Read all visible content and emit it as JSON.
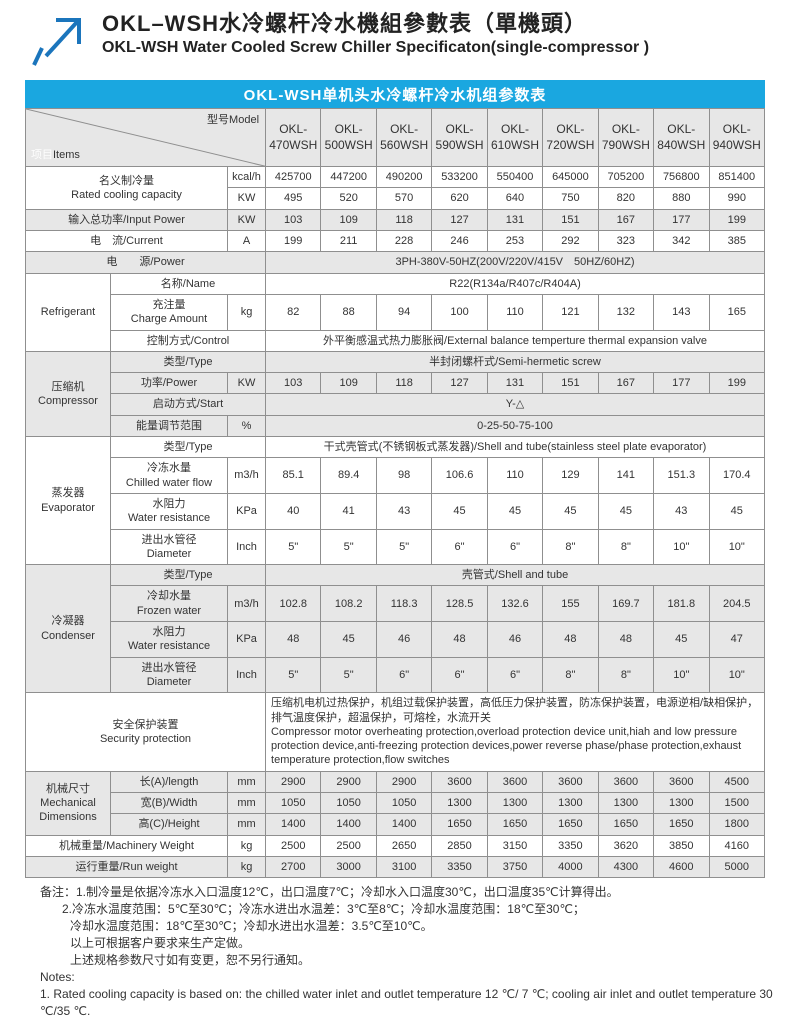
{
  "header": {
    "title_zh": "OKL–WSH水冷螺杆冷水機組參數表（單機頭）",
    "title_en": "OKL-WSH Water Cooled Screw Chiller Specificaton(single-compressor )"
  },
  "banner": {
    "text": "OKL-WSH单机头水冷螺杆冷水机组参数表"
  },
  "colors": {
    "banner_blue": "#1aa7e0",
    "band_gray": "#e7e7e7",
    "border_gray": "#8f8f8f",
    "arrow_blue": "#1b75bc"
  },
  "table": {
    "corner": {
      "items_zh": "项目",
      "items_en": "Items",
      "model_label": "型号Model"
    },
    "models": [
      "OKL-470WSH",
      "OKL-500WSH",
      "OKL-560WSH",
      "OKL-590WSH",
      "OKL-610WSH",
      "OKL-720WSH",
      "OKL-790WSH",
      "OKL-840WSH",
      "OKL-940WSH"
    ],
    "rows": [
      {
        "name": "rated-cooling-kcal",
        "bg": "w",
        "label": "名义制冷量\nRated cooling capacity",
        "labelColspan": 2,
        "labelRowspan": 2,
        "unit": "kcal/h",
        "values": [
          425700,
          447200,
          490200,
          533200,
          550400,
          645000,
          705200,
          756800,
          851400
        ]
      },
      {
        "name": "rated-cooling-kw",
        "bg": "w",
        "cont": true,
        "unit": "KW",
        "values": [
          495,
          520,
          570,
          620,
          640,
          750,
          820,
          880,
          990
        ]
      },
      {
        "name": "input-power",
        "bg": "g",
        "label": "输入总功率/Input Power",
        "labelColspan": 2,
        "unit": "KW",
        "values": [
          103,
          109,
          118,
          127,
          131,
          151,
          167,
          177,
          199
        ]
      },
      {
        "name": "current",
        "bg": "w",
        "label": "电　流/Current",
        "labelColspan": 2,
        "unit": "A",
        "values": [
          199,
          211,
          228,
          246,
          253,
          292,
          323,
          342,
          385
        ]
      },
      {
        "name": "power-supply",
        "bg": "g",
        "label": "电　　源/Power",
        "labelColspan": 3,
        "merged": "3PH-380V-50HZ(200V/220V/415V　50HZ/60HZ)"
      },
      {
        "name": "refrigerant-name",
        "bg": "w",
        "group": "Refrigerant",
        "groupRowspan": 3,
        "label": "名称/Name",
        "labelColspan": 2,
        "merged": "R22(R134a/R407c/R404A)"
      },
      {
        "name": "refrigerant-charge",
        "bg": "w",
        "label": "充注量\nCharge Amount",
        "unit": "kg",
        "values": [
          82,
          88,
          94,
          100,
          110,
          121,
          132,
          143,
          165
        ]
      },
      {
        "name": "refrigerant-control",
        "bg": "w",
        "label": "控制方式/Control",
        "labelColspan": 2,
        "merged": "外平衡感温式热力膨胀阀/External balance temperture thermal expansion valve"
      },
      {
        "name": "compressor-type",
        "bg": "g",
        "group": "压缩机\nCompressor",
        "groupRowspan": 4,
        "label": "类型/Type",
        "labelColspan": 2,
        "merged": "半封闭螺杆式/Semi-hermetic screw"
      },
      {
        "name": "compressor-power",
        "bg": "g",
        "label": "功率/Power",
        "unit": "KW",
        "values": [
          103,
          109,
          118,
          127,
          131,
          151,
          167,
          177,
          199
        ]
      },
      {
        "name": "compressor-start",
        "bg": "g",
        "label": "启动方式/Start",
        "labelColspan": 2,
        "merged": "Y-△"
      },
      {
        "name": "compressor-capacity-range",
        "bg": "g",
        "label": "能量调节范围",
        "unit": "%",
        "merged": "0-25-50-75-100"
      },
      {
        "name": "evaporator-type",
        "bg": "w",
        "group": "蒸发器\nEvaporator",
        "groupRowspan": 4,
        "label": "类型/Type",
        "labelColspan": 2,
        "merged": "干式壳管式(不锈钢板式蒸发器)/Shell and tube(stainless steel plate evaporator)"
      },
      {
        "name": "evaporator-chilled-water-flow",
        "bg": "w",
        "label": "冷冻水量\nChilled water flow",
        "unit": "m3/h",
        "values": [
          85.1,
          89.4,
          98,
          106.6,
          110,
          129,
          141,
          151.3,
          170.4
        ]
      },
      {
        "name": "evaporator-water-resistance",
        "bg": "w",
        "label": "水阻力\nWater resistance",
        "unit": "KPa",
        "values": [
          40,
          41,
          43,
          45,
          45,
          45,
          45,
          43,
          45
        ]
      },
      {
        "name": "evaporator-pipe-diameter",
        "bg": "w",
        "label": "进出水管径\nDiameter",
        "unit": "Inch",
        "values": [
          "5\"",
          "5\"",
          "5\"",
          "6\"",
          "6\"",
          "8\"",
          "8\"",
          "10\"",
          "10\""
        ]
      },
      {
        "name": "condenser-type",
        "bg": "g",
        "group": "冷凝器\nCondenser",
        "groupRowspan": 4,
        "label": "类型/Type",
        "labelColspan": 2,
        "merged": "壳管式/Shell and tube"
      },
      {
        "name": "condenser-frozen-water",
        "bg": "g",
        "label": "冷却水量\nFrozen water",
        "unit": "m3/h",
        "values": [
          102.8,
          108.2,
          118.3,
          128.5,
          132.6,
          155,
          169.7,
          181.8,
          204.5
        ]
      },
      {
        "name": "condenser-water-resistance",
        "bg": "g",
        "label": "水阻力\nWater resistance",
        "unit": "KPa",
        "values": [
          48,
          45,
          46,
          48,
          46,
          48,
          48,
          45,
          47
        ]
      },
      {
        "name": "condenser-pipe-diameter",
        "bg": "g",
        "label": "进出水管径\nDiameter",
        "unit": "Inch",
        "values": [
          "5\"",
          "5\"",
          "6\"",
          "6\"",
          "6\"",
          "8\"",
          "8\"",
          "10\"",
          "10\""
        ]
      },
      {
        "name": "security-protection",
        "bg": "w",
        "label": "安全保护装置\nSecurity protection",
        "labelColspan": 3,
        "merged": "压缩机电机过热保护，机组过载保护装置，高低压力保护装置，防冻保护装置，电源逆相/缺相保护，排气温度保护，超温保护，可熔栓，水流开关\nCompressor motor overheating protection,overload protection device unit,hiah and low pressure protection device,anti-freezing protection devices,power reverse phase/phase protection,exhaust temperature protection,flow switches",
        "mergedAlign": "left"
      },
      {
        "name": "dimension-length",
        "bg": "g",
        "group": "机械尺寸\nMechanical\nDimensions",
        "groupRowspan": 3,
        "label": "长(A)/length",
        "unit": "mm",
        "values": [
          2900,
          2900,
          2900,
          3600,
          3600,
          3600,
          3600,
          3600,
          4500
        ]
      },
      {
        "name": "dimension-width",
        "bg": "g",
        "label": "宽(B)/Width",
        "unit": "mm",
        "values": [
          1050,
          1050,
          1050,
          1300,
          1300,
          1300,
          1300,
          1300,
          1500
        ]
      },
      {
        "name": "dimension-height",
        "bg": "g",
        "label": "高(C)/Height",
        "unit": "mm",
        "values": [
          1400,
          1400,
          1400,
          1650,
          1650,
          1650,
          1650,
          1650,
          1800
        ]
      },
      {
        "name": "machinery-weight",
        "bg": "w",
        "label": "机械重量/Machinery Weight",
        "labelColspan": 2,
        "unit": "kg",
        "values": [
          2500,
          2500,
          2650,
          2850,
          3150,
          3350,
          3620,
          3850,
          4160
        ]
      },
      {
        "name": "run-weight",
        "bg": "g",
        "label": "运行重量/Run weight",
        "labelColspan": 2,
        "unit": "kg",
        "values": [
          2700,
          3000,
          3100,
          3350,
          3750,
          4000,
          4300,
          4600,
          5000
        ]
      }
    ]
  },
  "notes": {
    "lines": [
      {
        "text": "备注：1.制冷量是依据冷冻水入口温度12℃，出口温度7℃；冷却水入口温度30℃，出口温度35℃计算得出。",
        "indent": 0
      },
      {
        "text": "2.冷冻水温度范围：5℃至30℃；冷冻水进出水温差：3℃至8℃；冷却水温度范围：18℃至30℃；",
        "indent": 1
      },
      {
        "text": "冷却水温度范围：18℃至30℃；冷却水进出水温差：3.5℃至10℃。",
        "indent": 2
      },
      {
        "text": "以上可根据客户要求来生产定做。",
        "indent": 2
      },
      {
        "text": "上述规格参数尺寸如有变更，恕不另行通知。",
        "indent": 2
      },
      {
        "text": "Notes:",
        "indent": 0
      },
      {
        "text": "1. Rated cooling capacity is based on: the chilled water inlet and outlet temperature 12 ℃/ 7 ℃; cooling air inlet and outlet temperature 30 ℃/35 ℃.",
        "indent": 0
      }
    ]
  }
}
